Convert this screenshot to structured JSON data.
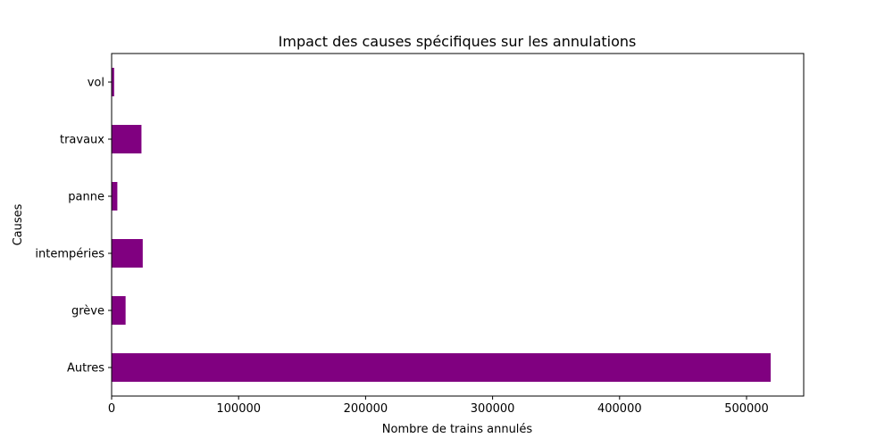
{
  "chart_data": {
    "type": "bar",
    "orientation": "horizontal",
    "title": "Impact des causes spécifiques sur les annulations",
    "xlabel": "Nombre de trains annulés",
    "ylabel": "Causes",
    "categories": [
      "Autres",
      "grève",
      "intempéries",
      "panne",
      "travaux",
      "vol"
    ],
    "values": [
      519000,
      11000,
      24500,
      4500,
      23500,
      2000
    ],
    "xlim": [
      0,
      545000
    ],
    "xticks": [
      0,
      100000,
      200000,
      300000,
      400000,
      500000
    ],
    "xtick_labels": [
      "0",
      "100000",
      "200000",
      "300000",
      "400000",
      "500000"
    ],
    "grid": false,
    "color": "#800080"
  }
}
